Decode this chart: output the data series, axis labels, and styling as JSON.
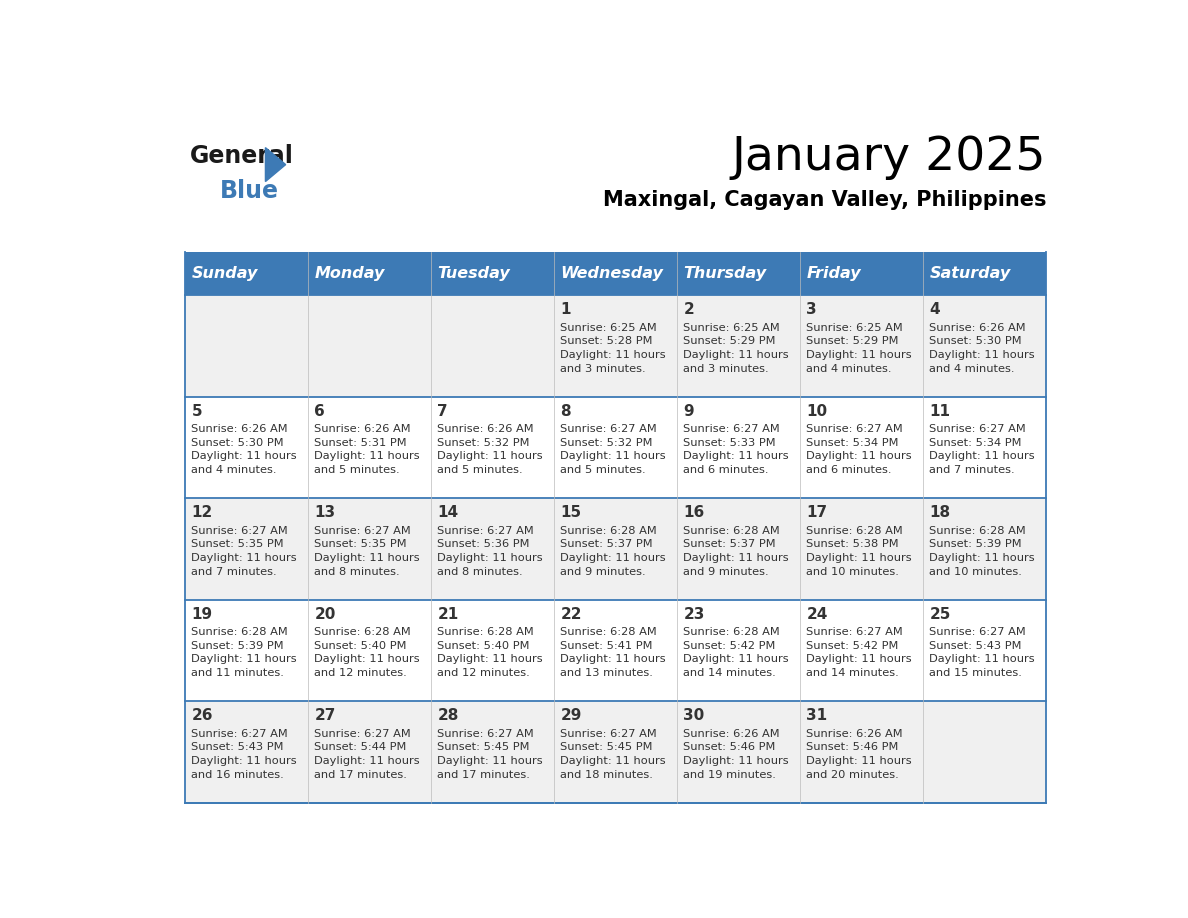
{
  "title": "January 2025",
  "subtitle": "Maxingal, Cagayan Valley, Philippines",
  "header_bg_color": "#3D7AB5",
  "header_text_color": "#FFFFFF",
  "row_bg_even": "#F0F0F0",
  "row_bg_odd": "#FFFFFF",
  "cell_text_color": "#333333",
  "day_num_color": "#333333",
  "separator_color": "#3D7AB5",
  "days_of_week": [
    "Sunday",
    "Monday",
    "Tuesday",
    "Wednesday",
    "Thursday",
    "Friday",
    "Saturday"
  ],
  "calendar_data": [
    [
      {
        "day": null,
        "sunrise": null,
        "sunset": null,
        "daylight": null
      },
      {
        "day": null,
        "sunrise": null,
        "sunset": null,
        "daylight": null
      },
      {
        "day": null,
        "sunrise": null,
        "sunset": null,
        "daylight": null
      },
      {
        "day": 1,
        "sunrise": "6:25 AM",
        "sunset": "5:28 PM",
        "daylight": "11 hours\nand 3 minutes."
      },
      {
        "day": 2,
        "sunrise": "6:25 AM",
        "sunset": "5:29 PM",
        "daylight": "11 hours\nand 3 minutes."
      },
      {
        "day": 3,
        "sunrise": "6:25 AM",
        "sunset": "5:29 PM",
        "daylight": "11 hours\nand 4 minutes."
      },
      {
        "day": 4,
        "sunrise": "6:26 AM",
        "sunset": "5:30 PM",
        "daylight": "11 hours\nand 4 minutes."
      }
    ],
    [
      {
        "day": 5,
        "sunrise": "6:26 AM",
        "sunset": "5:30 PM",
        "daylight": "11 hours\nand 4 minutes."
      },
      {
        "day": 6,
        "sunrise": "6:26 AM",
        "sunset": "5:31 PM",
        "daylight": "11 hours\nand 5 minutes."
      },
      {
        "day": 7,
        "sunrise": "6:26 AM",
        "sunset": "5:32 PM",
        "daylight": "11 hours\nand 5 minutes."
      },
      {
        "day": 8,
        "sunrise": "6:27 AM",
        "sunset": "5:32 PM",
        "daylight": "11 hours\nand 5 minutes."
      },
      {
        "day": 9,
        "sunrise": "6:27 AM",
        "sunset": "5:33 PM",
        "daylight": "11 hours\nand 6 minutes."
      },
      {
        "day": 10,
        "sunrise": "6:27 AM",
        "sunset": "5:34 PM",
        "daylight": "11 hours\nand 6 minutes."
      },
      {
        "day": 11,
        "sunrise": "6:27 AM",
        "sunset": "5:34 PM",
        "daylight": "11 hours\nand 7 minutes."
      }
    ],
    [
      {
        "day": 12,
        "sunrise": "6:27 AM",
        "sunset": "5:35 PM",
        "daylight": "11 hours\nand 7 minutes."
      },
      {
        "day": 13,
        "sunrise": "6:27 AM",
        "sunset": "5:35 PM",
        "daylight": "11 hours\nand 8 minutes."
      },
      {
        "day": 14,
        "sunrise": "6:27 AM",
        "sunset": "5:36 PM",
        "daylight": "11 hours\nand 8 minutes."
      },
      {
        "day": 15,
        "sunrise": "6:28 AM",
        "sunset": "5:37 PM",
        "daylight": "11 hours\nand 9 minutes."
      },
      {
        "day": 16,
        "sunrise": "6:28 AM",
        "sunset": "5:37 PM",
        "daylight": "11 hours\nand 9 minutes."
      },
      {
        "day": 17,
        "sunrise": "6:28 AM",
        "sunset": "5:38 PM",
        "daylight": "11 hours\nand 10 minutes."
      },
      {
        "day": 18,
        "sunrise": "6:28 AM",
        "sunset": "5:39 PM",
        "daylight": "11 hours\nand 10 minutes."
      }
    ],
    [
      {
        "day": 19,
        "sunrise": "6:28 AM",
        "sunset": "5:39 PM",
        "daylight": "11 hours\nand 11 minutes."
      },
      {
        "day": 20,
        "sunrise": "6:28 AM",
        "sunset": "5:40 PM",
        "daylight": "11 hours\nand 12 minutes."
      },
      {
        "day": 21,
        "sunrise": "6:28 AM",
        "sunset": "5:40 PM",
        "daylight": "11 hours\nand 12 minutes."
      },
      {
        "day": 22,
        "sunrise": "6:28 AM",
        "sunset": "5:41 PM",
        "daylight": "11 hours\nand 13 minutes."
      },
      {
        "day": 23,
        "sunrise": "6:28 AM",
        "sunset": "5:42 PM",
        "daylight": "11 hours\nand 14 minutes."
      },
      {
        "day": 24,
        "sunrise": "6:27 AM",
        "sunset": "5:42 PM",
        "daylight": "11 hours\nand 14 minutes."
      },
      {
        "day": 25,
        "sunrise": "6:27 AM",
        "sunset": "5:43 PM",
        "daylight": "11 hours\nand 15 minutes."
      }
    ],
    [
      {
        "day": 26,
        "sunrise": "6:27 AM",
        "sunset": "5:43 PM",
        "daylight": "11 hours\nand 16 minutes."
      },
      {
        "day": 27,
        "sunrise": "6:27 AM",
        "sunset": "5:44 PM",
        "daylight": "11 hours\nand 17 minutes."
      },
      {
        "day": 28,
        "sunrise": "6:27 AM",
        "sunset": "5:45 PM",
        "daylight": "11 hours\nand 17 minutes."
      },
      {
        "day": 29,
        "sunrise": "6:27 AM",
        "sunset": "5:45 PM",
        "daylight": "11 hours\nand 18 minutes."
      },
      {
        "day": 30,
        "sunrise": "6:26 AM",
        "sunset": "5:46 PM",
        "daylight": "11 hours\nand 19 minutes."
      },
      {
        "day": 31,
        "sunrise": "6:26 AM",
        "sunset": "5:46 PM",
        "daylight": "11 hours\nand 20 minutes."
      },
      {
        "day": null,
        "sunrise": null,
        "sunset": null,
        "daylight": null
      }
    ]
  ],
  "logo_general_color": "#1A1A1A",
  "logo_blue_color": "#3D7AB5",
  "logo_triangle_color": "#3D7AB5"
}
